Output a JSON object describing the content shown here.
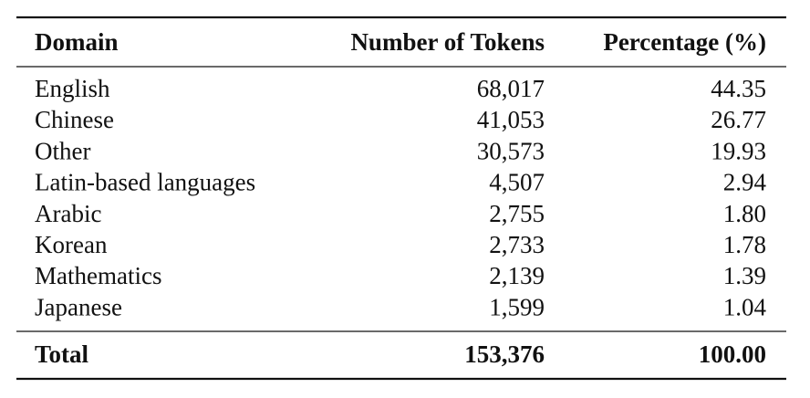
{
  "table": {
    "header": [
      "Domain",
      "Number of Tokens",
      "Percentage (%)"
    ],
    "rows": [
      [
        "English",
        "68,017",
        "44.35"
      ],
      [
        "Chinese",
        "41,053",
        "26.77"
      ],
      [
        "Other",
        "30,573",
        "19.93"
      ],
      [
        "Latin-based languages",
        "4,507",
        "2.94"
      ],
      [
        "Arabic",
        "2,755",
        "1.80"
      ],
      [
        "Korean",
        "2,733",
        "1.78"
      ],
      [
        "Mathematics",
        "2,139",
        "1.39"
      ],
      [
        "Japanese",
        "1,599",
        "1.04"
      ]
    ],
    "total": [
      "Total",
      "153,376",
      "100.00"
    ]
  }
}
